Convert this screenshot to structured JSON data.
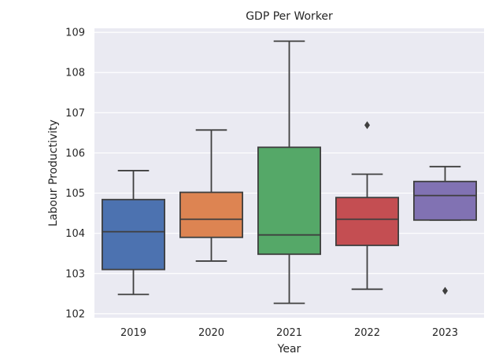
{
  "chart_data": {
    "type": "box",
    "title": "GDP Per Worker",
    "xlabel": "Year",
    "ylabel": "Labour Productivity",
    "ylim": [
      101.9,
      109.1
    ],
    "yticks": [
      102,
      103,
      104,
      105,
      106,
      107,
      108,
      109
    ],
    "grid": true,
    "categories": [
      "2019",
      "2020",
      "2021",
      "2022",
      "2023"
    ],
    "boxes": [
      {
        "category": "2019",
        "whisker_low": 102.48,
        "q1": 103.1,
        "median": 104.04,
        "q3": 104.84,
        "whisker_high": 105.56,
        "outliers": [],
        "color": "#4c72b0"
      },
      {
        "category": "2020",
        "whisker_low": 103.31,
        "q1": 103.9,
        "median": 104.35,
        "q3": 105.02,
        "whisker_high": 106.57,
        "outliers": [],
        "color": "#dd8452"
      },
      {
        "category": "2021",
        "whisker_low": 102.26,
        "q1": 103.48,
        "median": 103.96,
        "q3": 106.14,
        "whisker_high": 108.78,
        "outliers": [],
        "color": "#55a868"
      },
      {
        "category": "2022",
        "whisker_low": 102.61,
        "q1": 103.7,
        "median": 104.35,
        "q3": 104.89,
        "whisker_high": 105.47,
        "outliers": [
          106.69
        ],
        "color": "#c44e52"
      },
      {
        "category": "2023",
        "whisker_low": 104.33,
        "q1": 104.33,
        "median": 104.94,
        "q3": 105.29,
        "whisker_high": 105.66,
        "outliers": [
          102.57
        ],
        "color": "#8172b3"
      }
    ]
  }
}
